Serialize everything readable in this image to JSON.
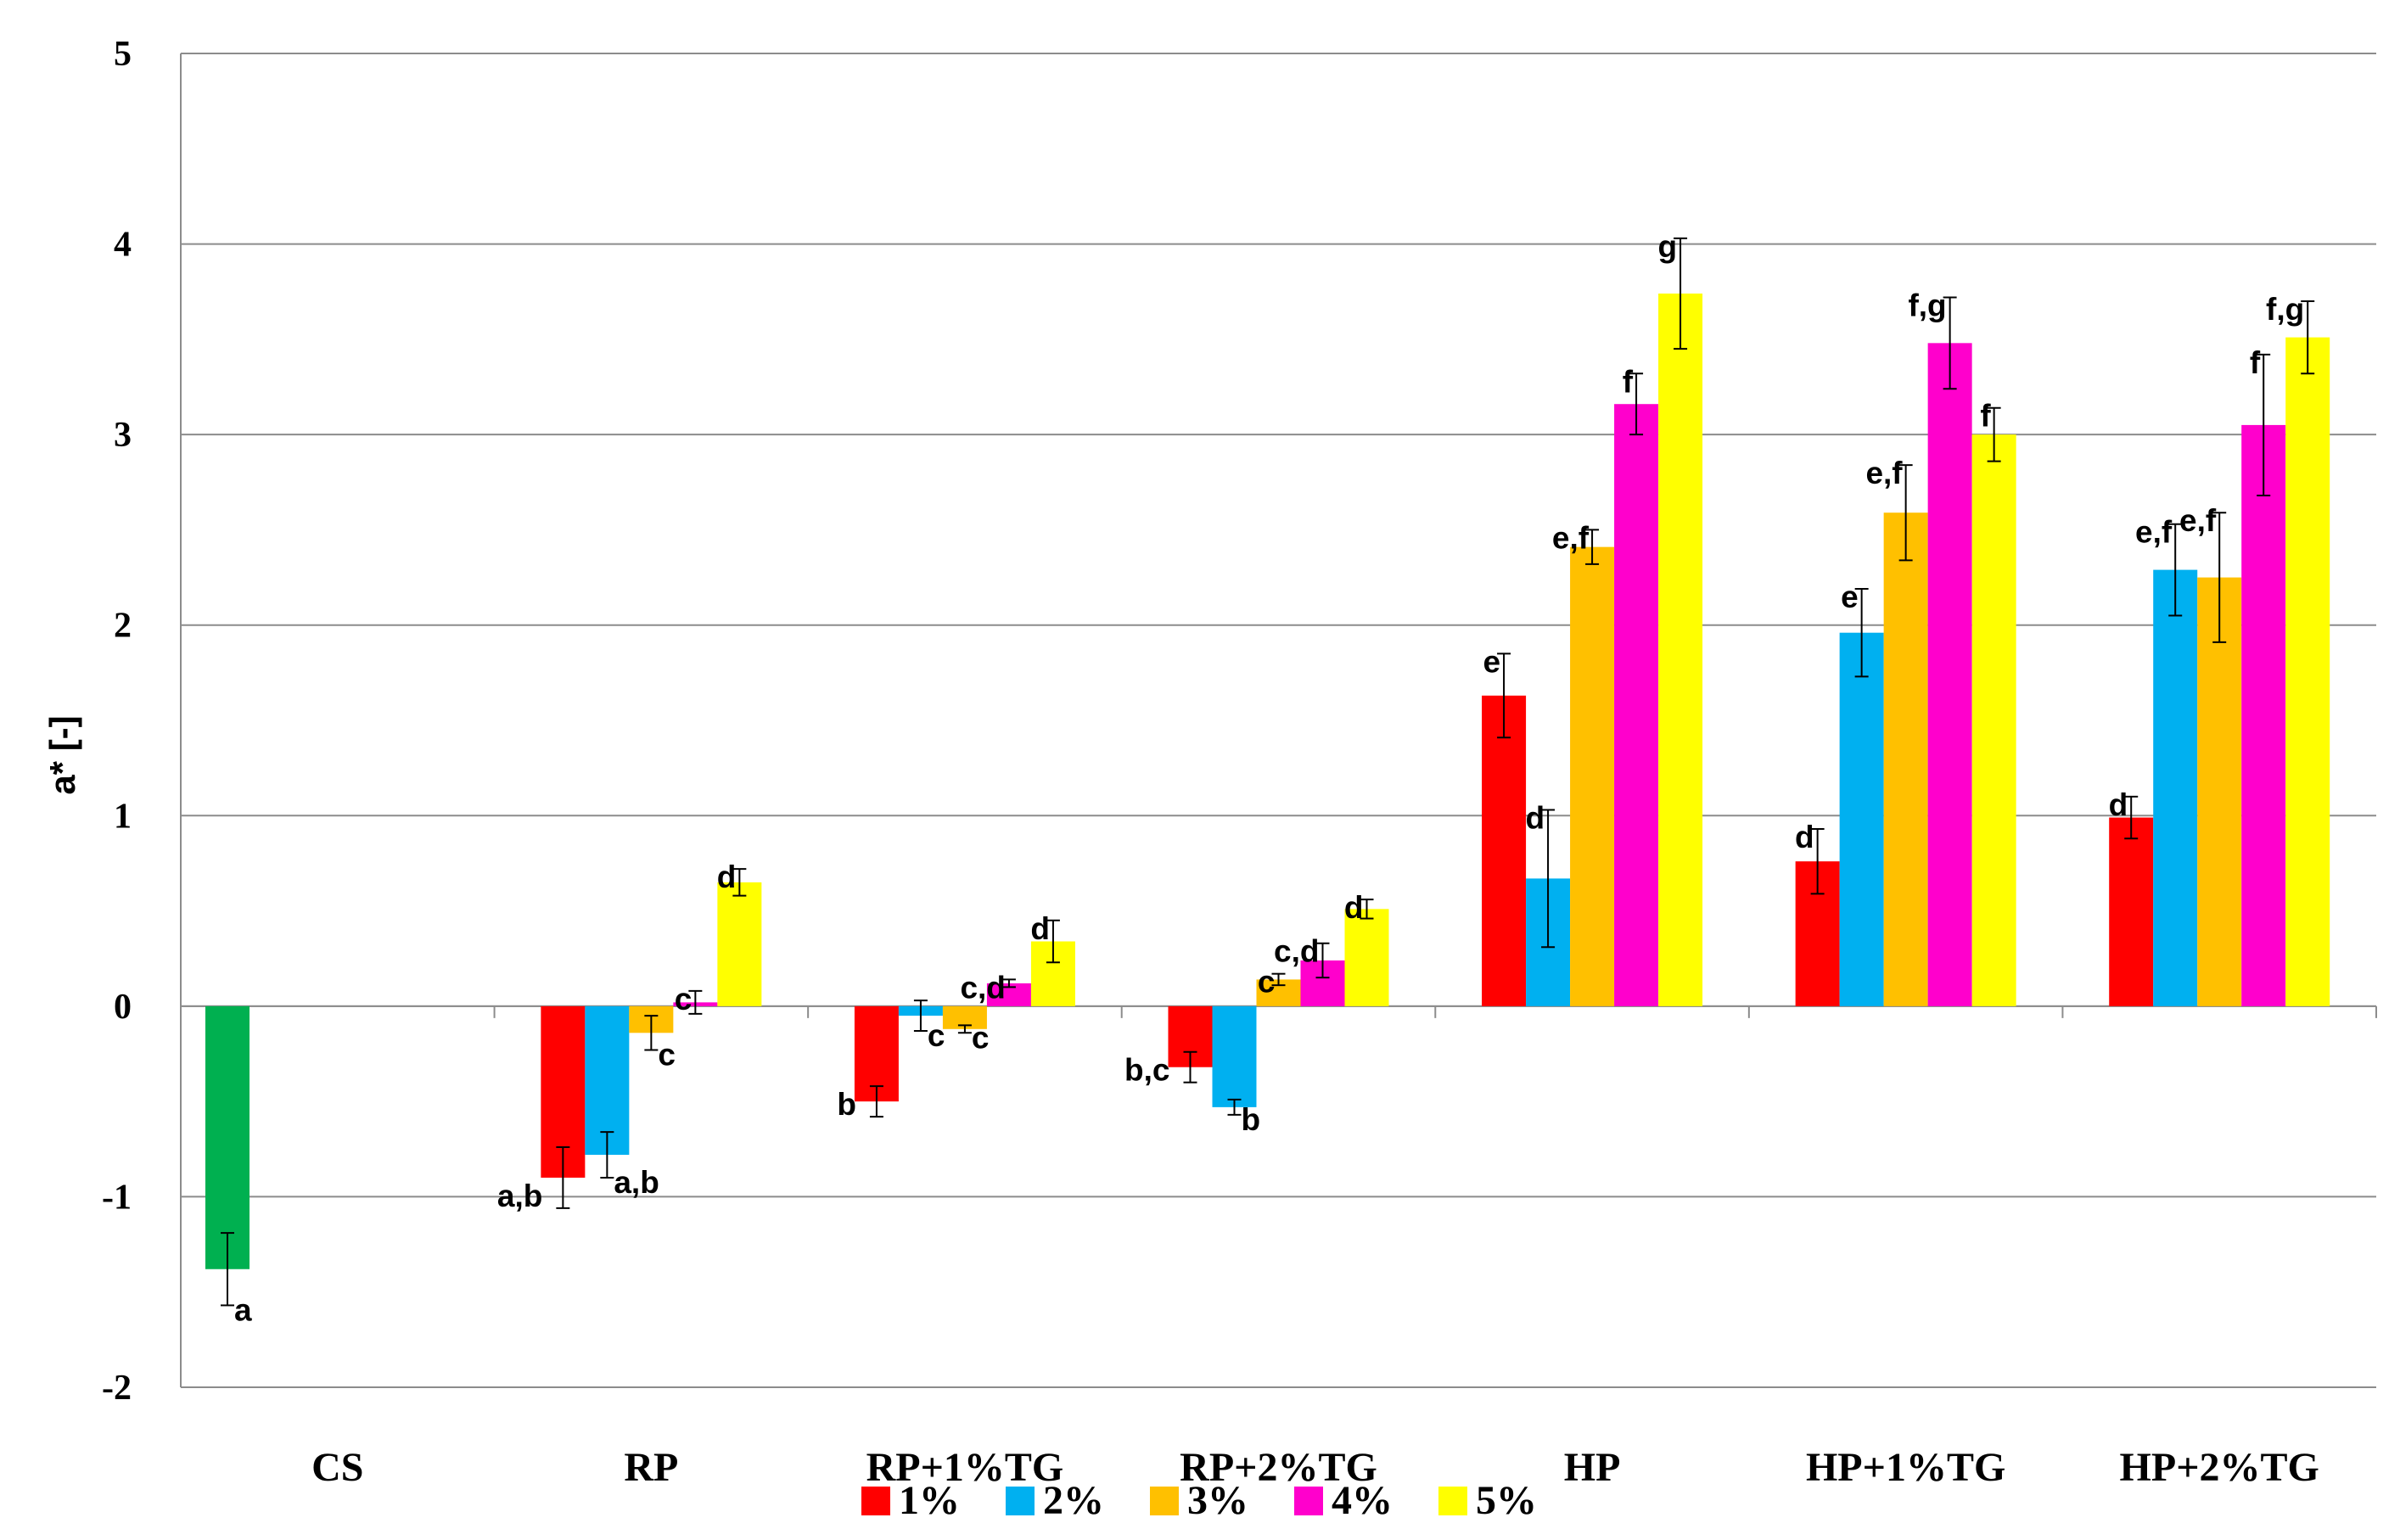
{
  "chart_data": {
    "type": "bar",
    "title": "",
    "xlabel": "",
    "ylabel": "a* [-]",
    "ylim": [
      -2,
      5
    ],
    "yticks": [
      -2,
      -1,
      0,
      1,
      2,
      3,
      4,
      5
    ],
    "grid": true,
    "legend_position": "bottom",
    "categories": [
      "CS",
      "RP",
      "RP+1%TG",
      "RP+2%TG",
      "HP",
      "HP+1%TG",
      "HP+2%TG"
    ],
    "control": {
      "category": "CS",
      "value": -1.38,
      "error": 0.19,
      "label": "a",
      "color": "#00b050"
    },
    "series": [
      {
        "name": "1%",
        "color": "#ff0000",
        "values": [
          null,
          -0.9,
          -0.5,
          -0.32,
          1.63,
          0.76,
          0.99
        ],
        "errors": [
          null,
          0.16,
          0.08,
          0.08,
          0.22,
          0.17,
          0.11
        ],
        "labels": [
          null,
          "a,b",
          "b",
          "b,c",
          "e",
          "d",
          "d"
        ]
      },
      {
        "name": "2%",
        "color": "#00b0f0",
        "values": [
          null,
          -0.78,
          -0.05,
          -0.53,
          0.67,
          1.96,
          2.29
        ],
        "errors": [
          null,
          0.12,
          0.08,
          0.04,
          0.36,
          0.23,
          0.24
        ],
        "labels": [
          null,
          "a,b",
          "c",
          "b",
          "d",
          "e",
          "e,f"
        ]
      },
      {
        "name": "3%",
        "color": "#ffc000",
        "values": [
          null,
          -0.14,
          -0.12,
          0.14,
          2.41,
          2.59,
          2.25
        ],
        "errors": [
          null,
          0.09,
          0.02,
          0.03,
          0.09,
          0.25,
          0.34
        ],
        "labels": [
          null,
          "c",
          "c",
          "c",
          "e,f",
          "e,f",
          "e,f"
        ]
      },
      {
        "name": "4%",
        "color": "#ff00cc",
        "values": [
          null,
          0.02,
          0.12,
          0.24,
          3.16,
          3.48,
          3.05
        ],
        "errors": [
          null,
          0.06,
          0.02,
          0.09,
          0.16,
          0.24,
          0.37
        ],
        "labels": [
          null,
          "c",
          "c,d",
          "c,d",
          "f",
          "f,g",
          "f"
        ]
      },
      {
        "name": "5%",
        "color": "#ffff00",
        "values": [
          null,
          0.65,
          0.34,
          0.51,
          3.74,
          3.0,
          3.51
        ],
        "errors": [
          null,
          0.07,
          0.11,
          0.05,
          0.29,
          0.14,
          0.19
        ],
        "labels": [
          null,
          "d",
          "d",
          "d",
          "g",
          "f",
          "f,g"
        ]
      }
    ]
  }
}
